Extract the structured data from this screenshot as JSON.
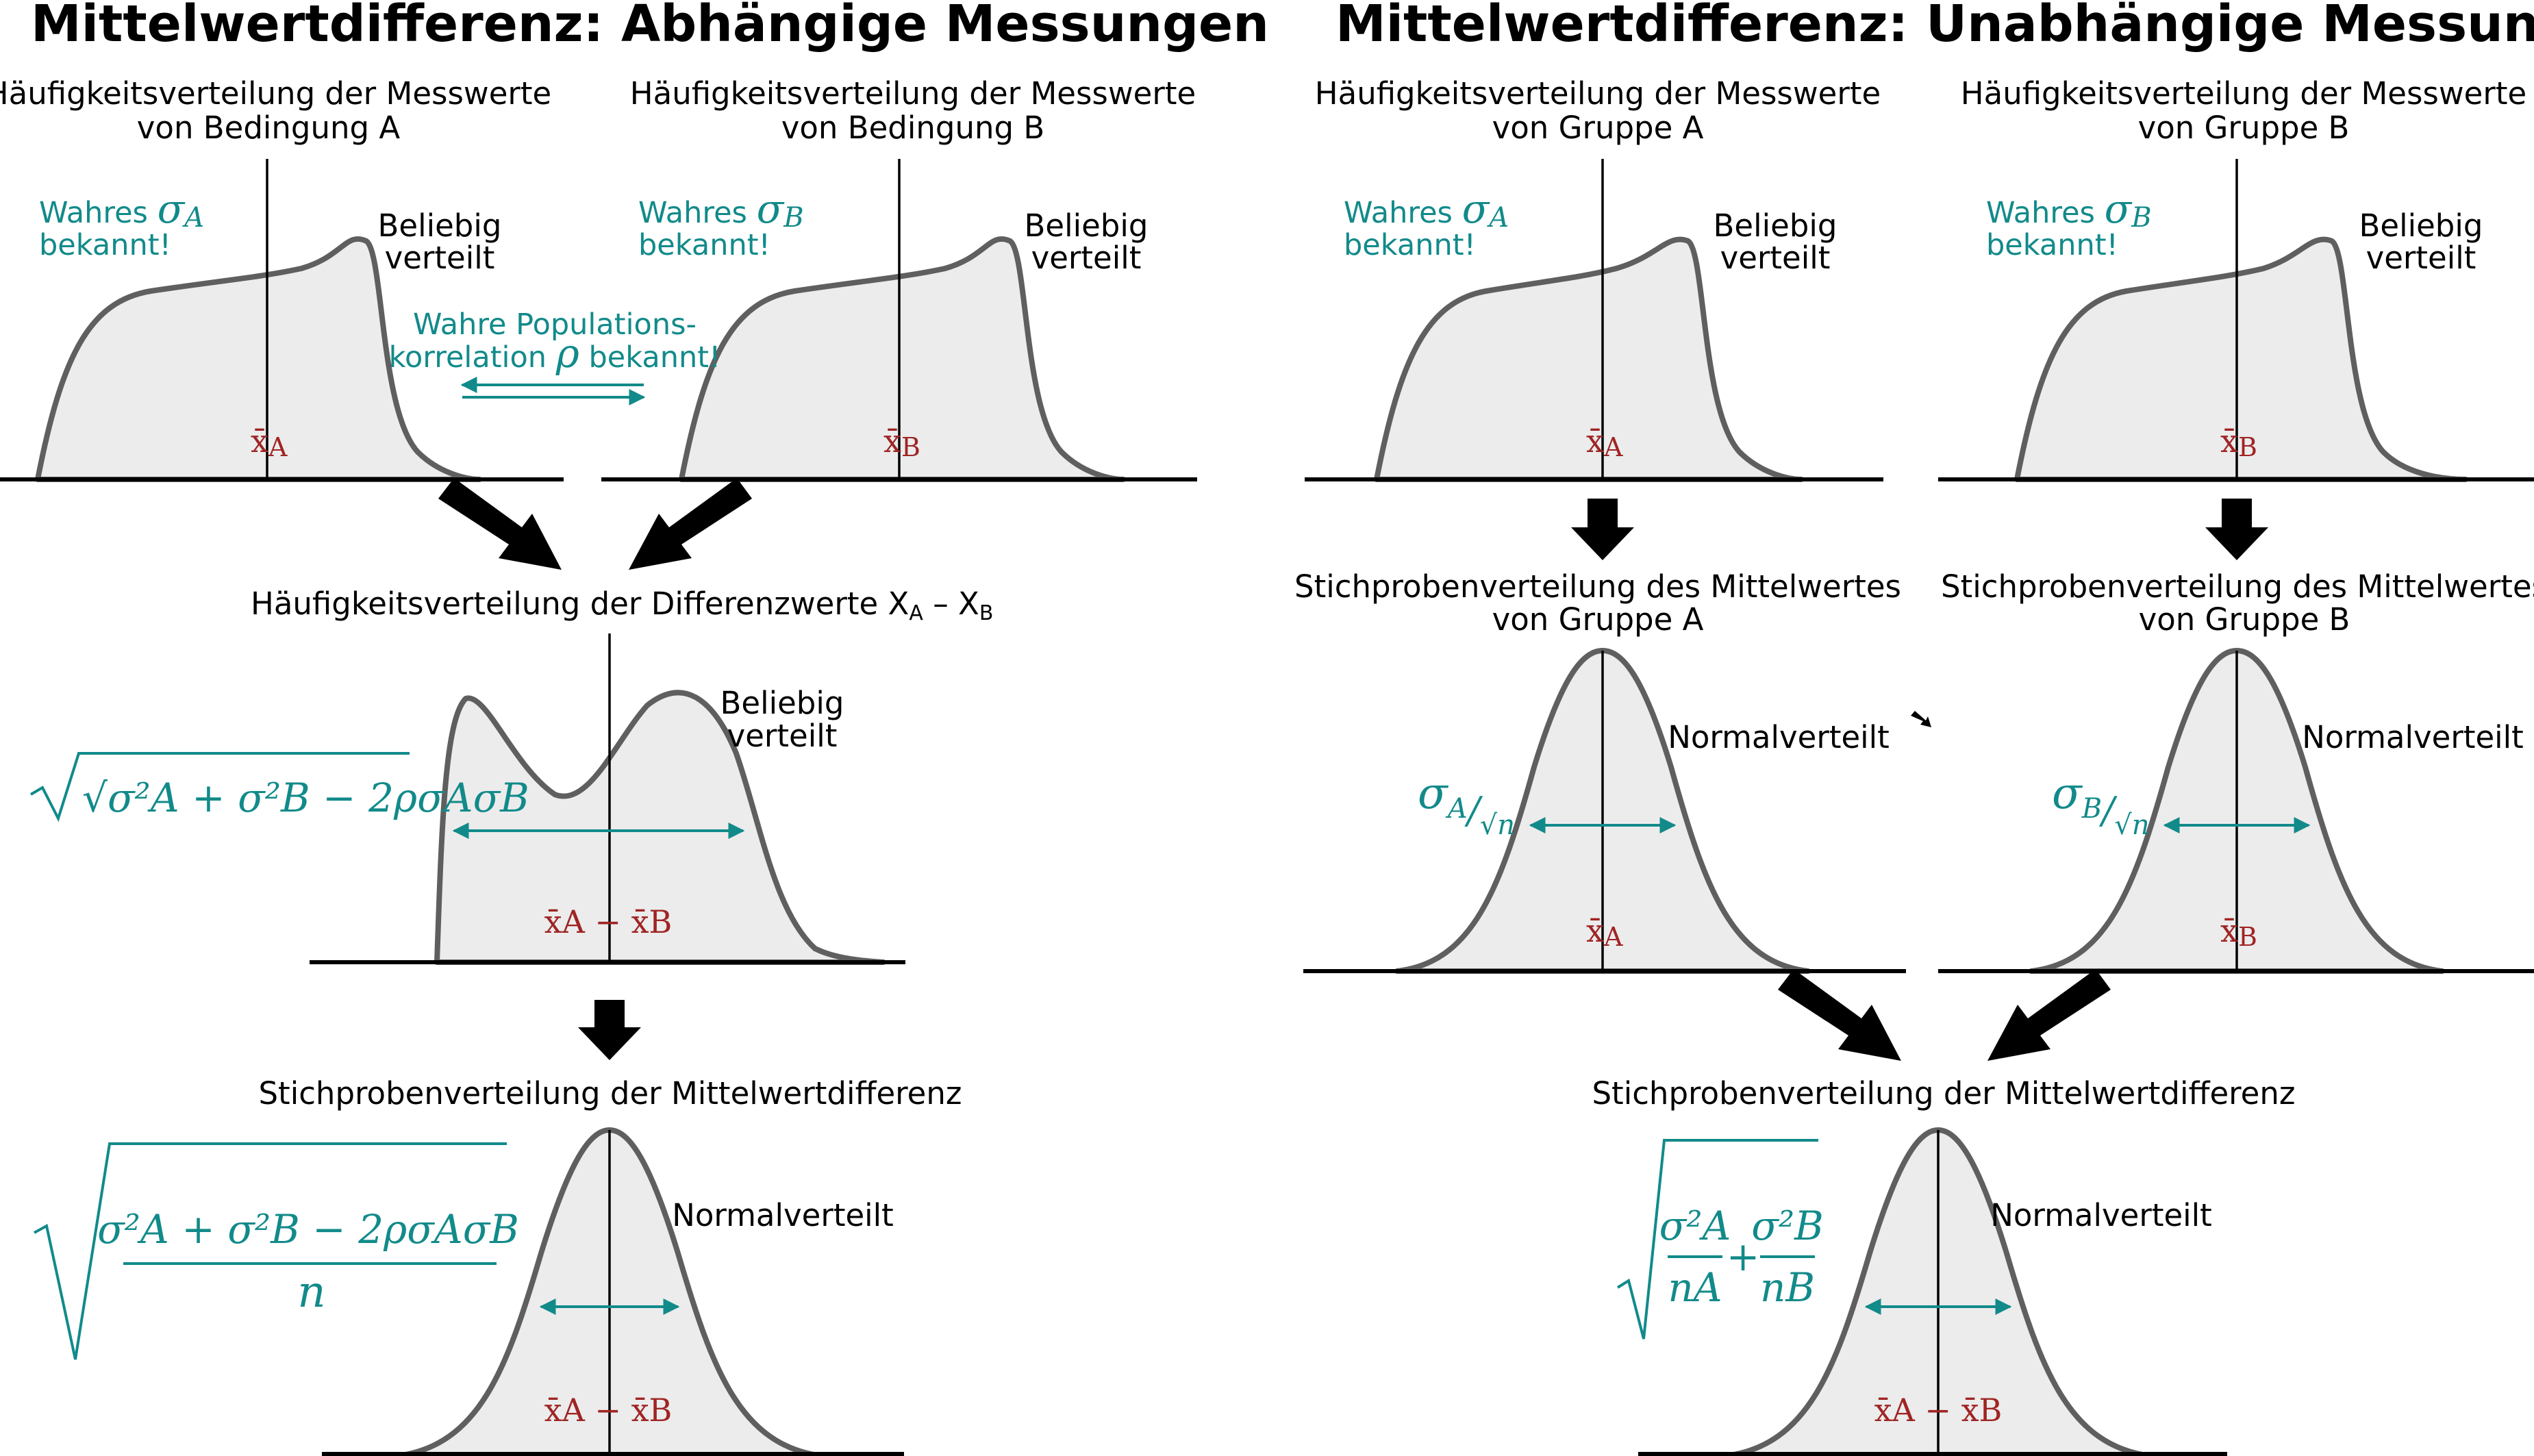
{
  "left": {
    "title": "Mittelwertdifferenz: Abhängige Messungen",
    "dist_a": {
      "label_line1": "Häufigkeitsverteilung der Messwerte",
      "label_line2": "von Bedingung A",
      "sigma_note_prefix": "Wahres",
      "sigma_symbol": "σ",
      "sigma_sub": "A",
      "sigma_note_line2": "bekannt!",
      "shape_line1": "Beliebig",
      "shape_line2": "verteilt",
      "mean_symbol": "x̄",
      "mean_sub": "A"
    },
    "dist_b": {
      "label_line1": "Häufigkeitsverteilung der Messwerte",
      "label_line2": "von Bedingung B",
      "sigma_note_prefix": "Wahres",
      "sigma_symbol": "σ",
      "sigma_sub": "B",
      "sigma_note_line2": "bekannt!",
      "shape_line1": "Beliebig",
      "shape_line2": "verteilt",
      "mean_symbol": "x̄",
      "mean_sub": "B"
    },
    "correlation": {
      "line1": "Wahre Populations-",
      "line2_prefix": "korrelation",
      "rho": "ρ",
      "line2_suffix": "bekannt!"
    },
    "difference": {
      "label": "Häufigkeitsverteilung der Differenzwerte",
      "var_a": "X",
      "var_a_sub": "A",
      "minus": "–",
      "var_b": "X",
      "var_b_sub": "B",
      "shape_line1": "Beliebig",
      "shape_line2": "verteilt",
      "formula": "√σ²A + σ²B − 2ρσAσB",
      "mean_label": "x̄A − x̄B"
    },
    "sampling": {
      "label": "Stichprobenverteilung der Mittelwertdifferenz",
      "shape": "Normalverteilt",
      "formula_num": "σ²A + σ²B − 2ρσAσB",
      "formula_den": "n",
      "mean_label": "x̄A − x̄B"
    }
  },
  "right": {
    "title": "Mittelwertdifferenz: Unabhängige Messungen",
    "dist_a": {
      "label_line1": "Häufigkeitsverteilung der Messwerte",
      "label_line2": "von Gruppe A",
      "sigma_note_prefix": "Wahres",
      "sigma_symbol": "σ",
      "sigma_sub": "A",
      "sigma_note_line2": "bekannt!",
      "shape_line1": "Beliebig",
      "shape_line2": "verteilt",
      "mean_symbol": "x̄",
      "mean_sub": "A"
    },
    "dist_b": {
      "label_line1": "Häufigkeitsverteilung der Messwerte",
      "label_line2": "von Gruppe B",
      "sigma_note_prefix": "Wahres",
      "sigma_symbol": "σ",
      "sigma_sub": "B",
      "sigma_note_line2": "bekannt!",
      "shape_line1": "Beliebig",
      "shape_line2": "verteilt",
      "mean_symbol": "x̄",
      "mean_sub": "B"
    },
    "sampling_a": {
      "label_line1": "Stichprobenverteilung des Mittelwertes",
      "label_line2": "von Gruppe A",
      "shape": "Normalverteilt",
      "se_sigma": "σ",
      "se_sub": "A",
      "se_den": "√n",
      "mean_symbol": "x̄",
      "mean_sub": "A"
    },
    "sampling_b": {
      "label_line1": "Stichprobenverteilung des Mittelwertes",
      "label_line2": "von Gruppe B",
      "shape": "Normalverteilt",
      "se_sigma": "σ",
      "se_sub": "B",
      "se_den": "√n",
      "mean_symbol": "x̄",
      "mean_sub": "B"
    },
    "sampling_diff": {
      "label": "Stichprobenverteilung der Mittelwertdifferenz",
      "shape": "Normalverteilt",
      "formula_a_num": "σ²A",
      "formula_a_den": "nA",
      "plus": "+",
      "formula_b_num": "σ²B",
      "formula_b_den": "nB",
      "mean_label": "x̄A − x̄B"
    }
  }
}
